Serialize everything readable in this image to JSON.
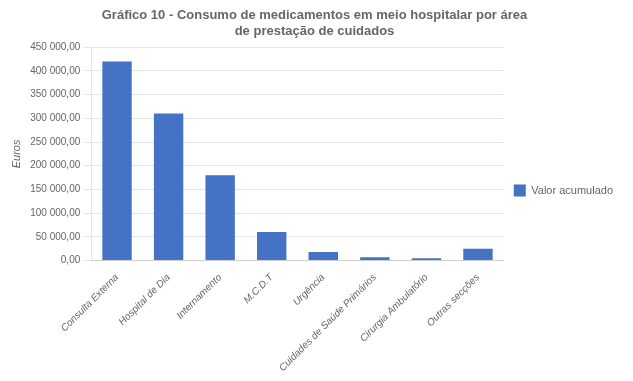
{
  "chart_data": {
    "type": "bar",
    "title": "Gráfico 10 - Consumo de medicamentos em meio hospitalar por área\nde prestação de cuidados",
    "categories": [
      "Consulta Externa",
      "Hospital de Dia",
      "Internamento",
      "M.C.D.T",
      "Urgência",
      "Cuidades de Saúde Primários",
      "Cirurgia Ambulatório",
      "Outras secções"
    ],
    "series": [
      {
        "name": "Valor acumulado",
        "color": "#4472C4",
        "values": [
          420000,
          310000,
          180000,
          60000,
          18000,
          7000,
          5000,
          25000
        ]
      }
    ],
    "ylabel": "Euros",
    "ylim": [
      0,
      450000
    ],
    "yticks": [
      {
        "value": 0,
        "label": "0,00"
      },
      {
        "value": 50000,
        "label": "50 000,00"
      },
      {
        "value": 100000,
        "label": "100 000,00"
      },
      {
        "value": 150000,
        "label": "150 000,00"
      },
      {
        "value": 200000,
        "label": "200 000,00"
      },
      {
        "value": 250000,
        "label": "250 000,00"
      },
      {
        "value": 300000,
        "label": "300 000,00"
      },
      {
        "value": 350000,
        "label": "350 000,00"
      },
      {
        "value": 400000,
        "label": "400 000,00"
      },
      {
        "value": 450000,
        "label": "450 000,00"
      }
    ],
    "grid": true,
    "legend": "right"
  }
}
